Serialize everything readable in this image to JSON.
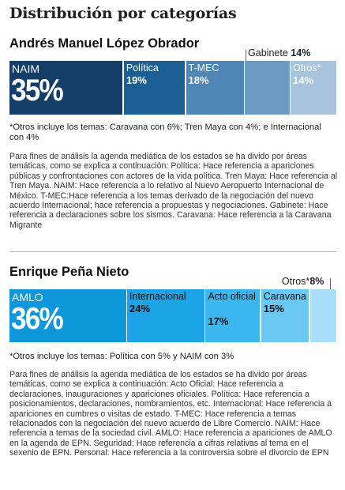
{
  "title": "Distribución por categorías",
  "colors": {
    "amlo_bars": [
      "#123e68",
      "#1a5f93",
      "#4f86b5",
      "#6c9ac3",
      "#a7c3de"
    ],
    "epn_bars": [
      "#0f97dc",
      "#1ba4e6",
      "#3cb6ee",
      "#69c9f3",
      "#a8defa"
    ]
  },
  "chart_data": [
    {
      "type": "bar",
      "stacked": true,
      "orientation": "horizontal",
      "title": "Andrés Manuel López Obrador",
      "categories": [
        "NAIM",
        "Política",
        "T-MEC",
        "Gabinete",
        "Otros*"
      ],
      "values": [
        35,
        19,
        18,
        14,
        14
      ],
      "labels": [
        "35%",
        "19%",
        "18%",
        "14%",
        "14%"
      ],
      "note": "*Otros incluye los temas: Caravana con 6%; Tren Maya con 4%; e Internacional con 4%",
      "description": "Para fines de análisis la agenda mediática de los estados se ha divido por áreas temáticas, como se explica a continuación: Política: Hace referencia a apariciones públicas y confrontaciones con actores de la vida política. Tren Maya: Hace referencia al Tren Maya. NAIM: Hace referencia a lo relativo al Nuevo Aeropuerto Internacional de México. T-MEC:Hace referencia a los temas derivado de la negociación del nuevo acuerdo Internacional; hace referencia a propuestas y negociaciones. Gabinete: Hace referencia a declaraciones sobre los sismos. Caravana: Hace referencia a la Caravana Migrante"
    },
    {
      "type": "bar",
      "stacked": true,
      "orientation": "horizontal",
      "title": "Enrique Peña Nieto",
      "categories": [
        "AMLO",
        "Internacional",
        "Acto oficial",
        "Caravana",
        "Otros*"
      ],
      "values": [
        36,
        24,
        17,
        15,
        8
      ],
      "labels": [
        "36%",
        "24%",
        "17%",
        "15%",
        "8%"
      ],
      "note": "*Otros incluye los temas: Política con 5% y NAIM con 3%",
      "description": "Para fines de análisis la agenda mediática de los estados se ha divido por áreas temáticas, como se explica a continuación: Acto Oficial: Hace referencia a declaraciones, inauguraciones y apariciones oficiales. Política: Hace referencia a posicionamientos, declaraciones, nombramientos, etc. Internacional: Hace referencia a apariciones en cumbres o visitas de estado. T-MEC: Hace referencia a temas relacionados con la negociación del nuevo acuerdo de Libre Comercio. NAIM: Hace referencia a temas de la sociedad civil. AMLO: Hace referencia a apariciones de AMLO en la agenda de EPN. Seguridad: Hace referencia a cifras relativas al tema en el sexenio de EPN. Personal: Hace referencia a la controversia sobre el divorcio de EPN"
    }
  ]
}
